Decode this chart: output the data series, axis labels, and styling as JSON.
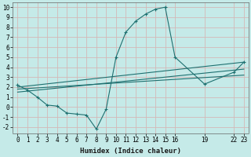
{
  "xlabel": "Humidex (Indice chaleur)",
  "bg_color": "#c5eae8",
  "grid_color": "#d4b8b8",
  "line_color": "#1e7070",
  "xlim": [
    -0.5,
    23.5
  ],
  "ylim": [
    -2.6,
    10.5
  ],
  "xticks": [
    0,
    1,
    2,
    3,
    4,
    5,
    6,
    7,
    8,
    9,
    10,
    11,
    12,
    13,
    14,
    15,
    16,
    19,
    22,
    23
  ],
  "xtick_labels": [
    "0",
    "1",
    "2",
    "3",
    "4",
    "5",
    "6",
    "7",
    "8",
    "9",
    "10",
    "11",
    "12",
    "13",
    "14",
    "15",
    "16",
    "19",
    "22",
    "23"
  ],
  "yticks": [
    -2,
    -1,
    0,
    1,
    2,
    3,
    4,
    5,
    6,
    7,
    8,
    9,
    10
  ],
  "line1_x": [
    0,
    1,
    2,
    3,
    4,
    5,
    6,
    7,
    8,
    9,
    10,
    11,
    12,
    13,
    14,
    15,
    16,
    19,
    22,
    23
  ],
  "line1_y": [
    2.2,
    1.7,
    1.0,
    0.2,
    0.1,
    -0.6,
    -0.7,
    -0.8,
    -2.2,
    -0.2,
    5.0,
    7.5,
    8.6,
    9.3,
    9.8,
    10.0,
    5.0,
    2.3,
    3.5,
    4.5
  ],
  "line2_x": [
    0,
    23
  ],
  "line2_y": [
    2.0,
    4.5
  ],
  "line3_x": [
    0,
    23
  ],
  "line3_y": [
    1.5,
    3.8
  ],
  "line4_x": [
    0,
    23
  ],
  "line4_y": [
    1.8,
    3.2
  ],
  "tick_fontsize": 5.5,
  "xlabel_fontsize": 6.5
}
